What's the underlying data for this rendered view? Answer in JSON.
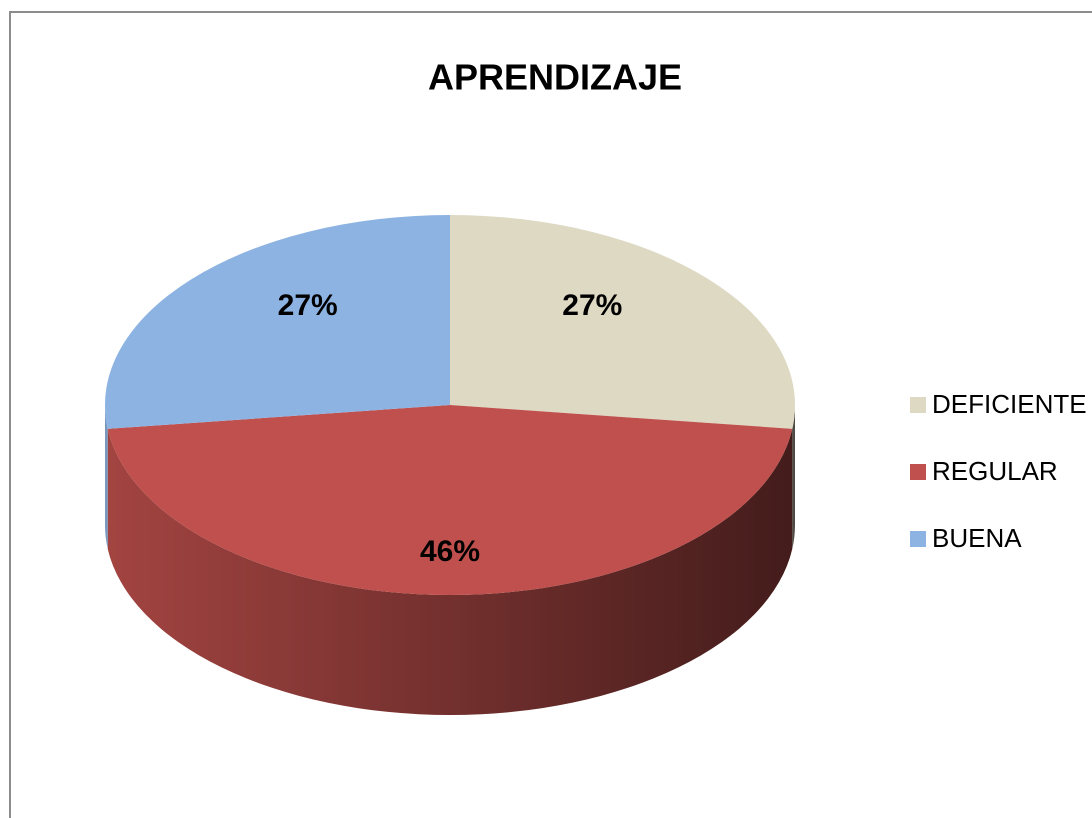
{
  "chart_data": {
    "type": "pie",
    "title": "APRENDIZAJE",
    "categories": [
      "DEFICIENTE",
      "REGULAR",
      "BUENA"
    ],
    "values": [
      27,
      46,
      27
    ],
    "value_labels": [
      "27%",
      "46%",
      "27%"
    ],
    "colors": [
      "#ddd9c3",
      "#c0504d",
      "#8db3e2"
    ],
    "legend": "right"
  }
}
